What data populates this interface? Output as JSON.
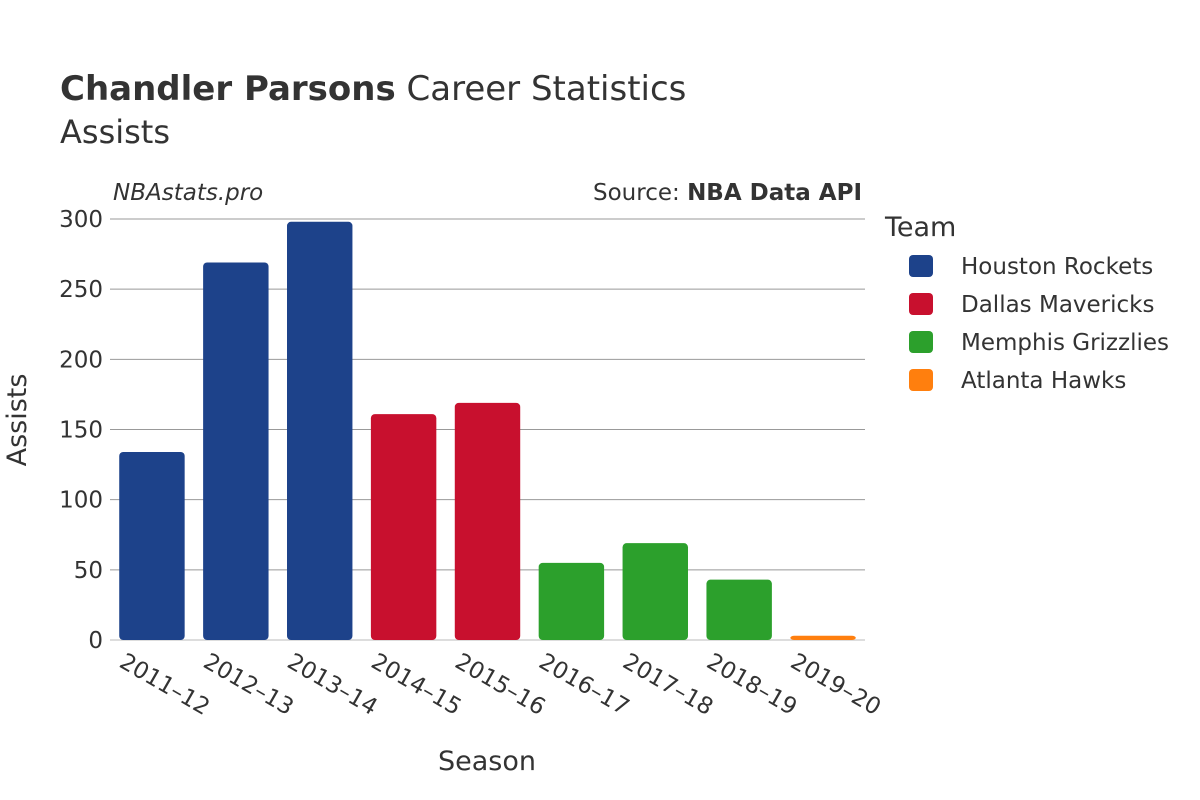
{
  "chart_data": {
    "type": "bar",
    "title_bold": "Chandler Parsons",
    "title_rest": "Career Statistics",
    "subtitle": "Assists",
    "watermark": "NBAstats.pro",
    "source_prefix": "Source: ",
    "source_name": "NBA Data API",
    "xlabel": "Season",
    "ylabel": "Assists",
    "ylim": [
      0,
      300
    ],
    "yticks": [
      0,
      50,
      100,
      150,
      200,
      250,
      300
    ],
    "grid": true,
    "legend_title": "Team",
    "legend_position": "right",
    "teams": [
      {
        "name": "Houston Rockets",
        "color": "#1d428a"
      },
      {
        "name": "Dallas Mavericks",
        "color": "#c8102e"
      },
      {
        "name": "Memphis Grizzlies",
        "color": "#2ca02c"
      },
      {
        "name": "Atlanta Hawks",
        "color": "#ff7f0e"
      }
    ],
    "categories": [
      "2011–12",
      "2012–13",
      "2013–14",
      "2014–15",
      "2015–16",
      "2016–17",
      "2017–18",
      "2018–19",
      "2019–20"
    ],
    "bars": [
      {
        "season": "2011–12",
        "team": "Houston Rockets",
        "value": 134
      },
      {
        "season": "2012–13",
        "team": "Houston Rockets",
        "value": 269
      },
      {
        "season": "2013–14",
        "team": "Houston Rockets",
        "value": 298
      },
      {
        "season": "2014–15",
        "team": "Dallas Mavericks",
        "value": 161
      },
      {
        "season": "2015–16",
        "team": "Dallas Mavericks",
        "value": 169
      },
      {
        "season": "2016–17",
        "team": "Memphis Grizzlies",
        "value": 55
      },
      {
        "season": "2017–18",
        "team": "Memphis Grizzlies",
        "value": 69
      },
      {
        "season": "2018–19",
        "team": "Memphis Grizzlies",
        "value": 43
      },
      {
        "season": "2019–20",
        "team": "Atlanta Hawks",
        "value": 3
      }
    ]
  }
}
